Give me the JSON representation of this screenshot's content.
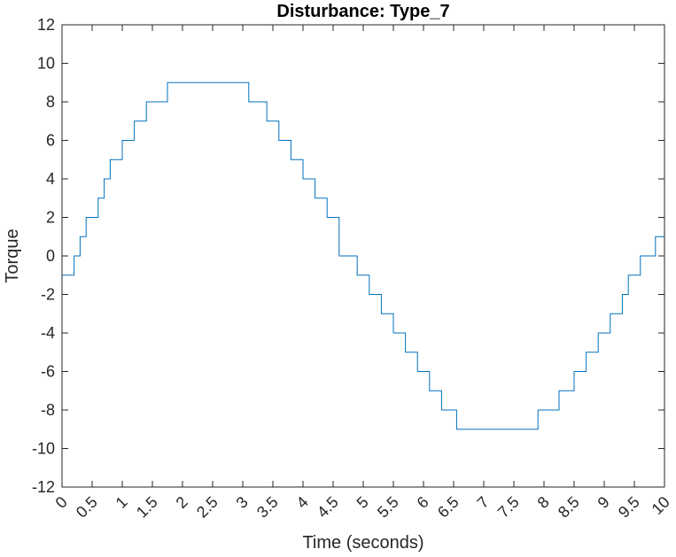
{
  "chart_data": {
    "type": "line",
    "title": "Disturbance: Type_7",
    "xlabel": "Time (seconds)",
    "ylabel": "Torque",
    "xlim": [
      0,
      10
    ],
    "ylim": [
      -12,
      12
    ],
    "xticks": [
      0,
      0.5,
      1,
      1.5,
      2,
      2.5,
      3,
      3.5,
      4,
      4.5,
      5,
      5.5,
      6,
      6.5,
      7,
      7.5,
      8,
      8.5,
      9,
      9.5,
      10
    ],
    "xtick_labels": [
      "0",
      "0.5",
      "1",
      "1.5",
      "2",
      "2.5",
      "3",
      "3.5",
      "4",
      "4.5",
      "5",
      "5.5",
      "6",
      "6.5",
      "7",
      "7.5",
      "8",
      "8.5",
      "9",
      "9.5",
      "10"
    ],
    "yticks": [
      -12,
      -10,
      -8,
      -6,
      -4,
      -2,
      0,
      2,
      4,
      6,
      8,
      10,
      12
    ],
    "ytick_labels": [
      "-12",
      "-10",
      "-8",
      "-6",
      "-4",
      "-2",
      "0",
      "2",
      "4",
      "6",
      "8",
      "10",
      "12"
    ],
    "grid": false,
    "line_color": "#0072BD",
    "series": [
      {
        "step": "post",
        "x": [
          0,
          0.2,
          0.3,
          0.4,
          0.6,
          0.7,
          0.8,
          1.0,
          1.2,
          1.4,
          1.75,
          3.1,
          3.4,
          3.6,
          3.8,
          4.0,
          4.2,
          4.4,
          4.6,
          4.9,
          5.1,
          5.3,
          5.5,
          5.7,
          5.9,
          6.1,
          6.3,
          6.55,
          7.9,
          8.25,
          8.5,
          8.7,
          8.9,
          9.1,
          9.3,
          9.4,
          9.6,
          9.85,
          10
        ],
        "y": [
          -1,
          0,
          1,
          2,
          3,
          4,
          5,
          6,
          7,
          8,
          9,
          8,
          7,
          6,
          5,
          4,
          3,
          2,
          0,
          -1,
          -2,
          -3,
          -4,
          -5,
          -6,
          -7,
          -8,
          -9,
          -8,
          -7,
          -6,
          -5,
          -4,
          -3,
          -2,
          -1,
          0,
          1,
          2
        ]
      }
    ]
  }
}
